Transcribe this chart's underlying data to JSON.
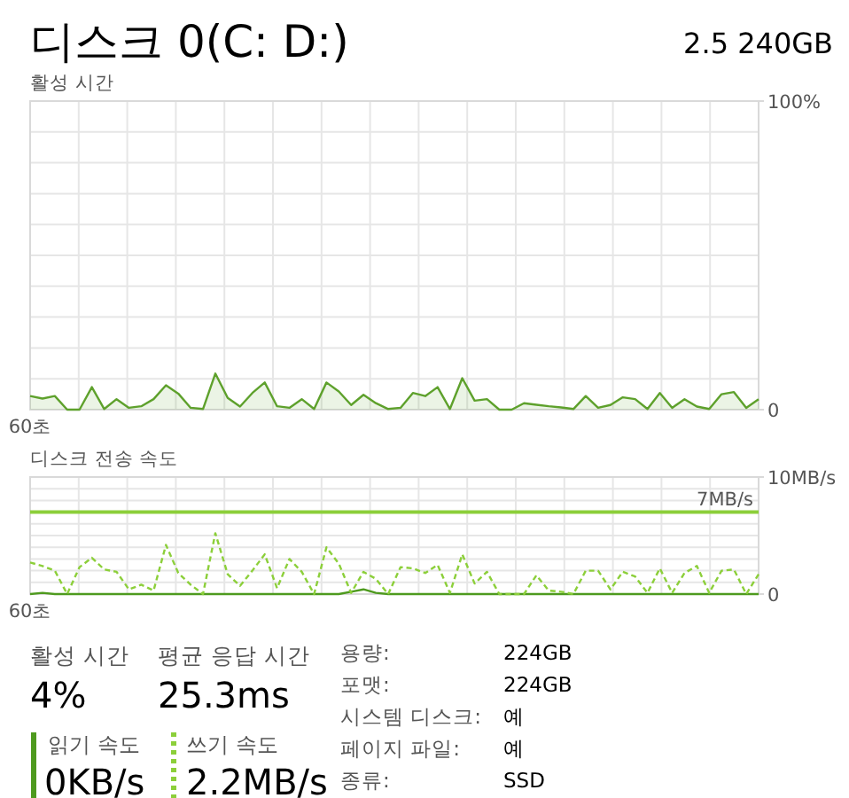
{
  "chart_data": [
    {
      "type": "area",
      "title": "디스크 0(C: D:)",
      "subtitle": "2.5 240GB",
      "ylabel": "활성 시간",
      "categories": [
        "60초",
        null,
        null,
        null,
        null,
        null,
        null,
        null,
        null,
        null,
        null,
        null,
        null,
        null,
        null,
        null,
        null,
        null,
        null,
        null,
        null,
        null,
        null,
        null,
        null,
        null,
        null,
        null,
        null,
        null,
        null,
        null,
        null,
        null,
        null,
        null,
        null,
        null,
        null,
        null,
        null,
        null,
        null,
        null,
        null,
        null,
        null,
        null,
        null,
        null,
        null,
        null,
        null,
        null,
        null,
        null,
        null,
        null,
        null,
        null
      ],
      "ylim": [
        0,
        100
      ],
      "yticks": [
        {
          "value": 0,
          "label": "0"
        },
        {
          "value": 100,
          "label": "100%"
        }
      ],
      "grid": true,
      "marker": "none",
      "series": [
        {
          "color": "#5ea12c",
          "line_style": "solid",
          "values": [
            4.4,
            3.6,
            4.4,
            0,
            0,
            7.3,
            0.2,
            3.4,
            0.6,
            1.1,
            3.4,
            7.9,
            5.2,
            0.6,
            0.2,
            11.7,
            3.8,
            1.0,
            5.4,
            8.8,
            1.1,
            0.6,
            3.4,
            0.2,
            8.8,
            5.9,
            1.5,
            4.8,
            2.1,
            0.2,
            0.6,
            5.4,
            4.4,
            7.3,
            0.2,
            10.2,
            2.9,
            3.4,
            0,
            0,
            2.1,
            1.6,
            1.1,
            0.7,
            0.2,
            4.4,
            0.6,
            1.5,
            4.0,
            3.4,
            0.2,
            5.4,
            0.6,
            3.4,
            1.0,
            0.2,
            5.0,
            5.7,
            0.6,
            3.4
          ]
        }
      ]
    },
    {
      "type": "line",
      "ylabel": "디스크 전송 속도",
      "categories": [
        "60초",
        null,
        null,
        null,
        null,
        null,
        null,
        null,
        null,
        null,
        null,
        null,
        null,
        null,
        null,
        null,
        null,
        null,
        null,
        null,
        null,
        null,
        null,
        null,
        null,
        null,
        null,
        null,
        null,
        null,
        null,
        null,
        null,
        null,
        null,
        null,
        null,
        null,
        null,
        null,
        null,
        null,
        null,
        null,
        null,
        null,
        null,
        null,
        null,
        null,
        null,
        null,
        null,
        null,
        null,
        null,
        null,
        null,
        null,
        null
      ],
      "ylim": [
        0,
        10
      ],
      "yticks": [
        {
          "value": 0,
          "label": "0"
        },
        {
          "value": 10,
          "label": "10MB/s"
        }
      ],
      "grid": true,
      "marker": "none",
      "legend": "bottom",
      "ref_lines": [
        {
          "axis": "y",
          "value": 7,
          "label": "7MB/s",
          "color": "#8ccf3a",
          "line_style": "solid"
        }
      ],
      "series": [
        {
          "name": "읽기 속도",
          "color": "#4e9a1e",
          "line_style": "solid",
          "values": [
            0,
            0.1,
            0,
            0,
            0,
            0,
            0,
            0,
            0,
            0,
            0,
            0,
            0,
            0,
            0,
            0,
            0,
            0,
            0,
            0,
            0,
            0,
            0,
            0,
            0,
            0,
            0.2,
            0.4,
            0.1,
            0,
            0,
            0,
            0,
            0,
            0,
            0,
            0,
            0,
            0,
            0,
            0,
            0,
            0,
            0,
            0,
            0,
            0,
            0,
            0,
            0,
            0,
            0,
            0,
            0,
            0,
            0,
            0,
            0,
            0,
            0
          ]
        },
        {
          "name": "쓰기 속도",
          "color": "#8ccf3a",
          "line_style": "dashed",
          "values": [
            2.7,
            2.4,
            2.0,
            0,
            2.3,
            3.1,
            2.1,
            1.9,
            0.4,
            0.8,
            0.3,
            4.2,
            1.8,
            0.8,
            0,
            5.2,
            1.7,
            0.7,
            2.0,
            3.4,
            0.5,
            3.0,
            1.9,
            0,
            4.0,
            2.6,
            0.1,
            1.9,
            1.3,
            0,
            2.3,
            2.2,
            1.8,
            2.5,
            0.1,
            3.4,
            0.9,
            1.9,
            0,
            0,
            0,
            1.6,
            0.3,
            0.2,
            0,
            2.0,
            2.0,
            0.4,
            1.9,
            1.5,
            0.1,
            2.2,
            0.1,
            1.8,
            2.4,
            0.1,
            2.0,
            2.1,
            0,
            1.7
          ]
        }
      ]
    },
    {
      "type": "other",
      "annotations": [
        "활성 시간",
        "4%",
        "평균 응답 시간",
        "25.3ms",
        "0KB/s",
        "2.2MB/s",
        "용량:",
        "224GB",
        "포맷:",
        "224GB",
        "시스템 디스크:",
        "예",
        "페이지 파일:",
        "예",
        "종류:",
        "SSD"
      ]
    }
  ]
}
